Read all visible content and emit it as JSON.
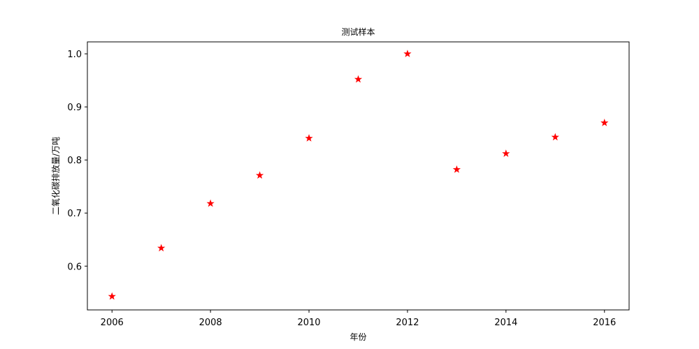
{
  "chart_data": {
    "type": "scatter",
    "title": "测试样本",
    "xlabel": "年份",
    "ylabel": "二氧化碳排放量/万吨",
    "marker": "star",
    "marker_color": "#ff0000",
    "xlim": [
      2005.5,
      2016.5
    ],
    "ylim": [
      0.5175,
      1.0225
    ],
    "x_ticks": [
      2006,
      2008,
      2010,
      2012,
      2014,
      2016
    ],
    "y_ticks": [
      0.6,
      0.7,
      0.8,
      0.9,
      1.0
    ],
    "y_tick_labels": [
      "0.6",
      "0.7",
      "0.8",
      "0.9",
      "1.0"
    ],
    "grid": false,
    "series": [
      {
        "x": [
          2006,
          2007,
          2008,
          2009,
          2010,
          2011,
          2012,
          2013,
          2014,
          2015,
          2016
        ],
        "y": [
          0.543,
          0.634,
          0.718,
          0.771,
          0.841,
          0.952,
          1.0,
          0.782,
          0.812,
          0.843,
          0.87
        ]
      }
    ]
  }
}
